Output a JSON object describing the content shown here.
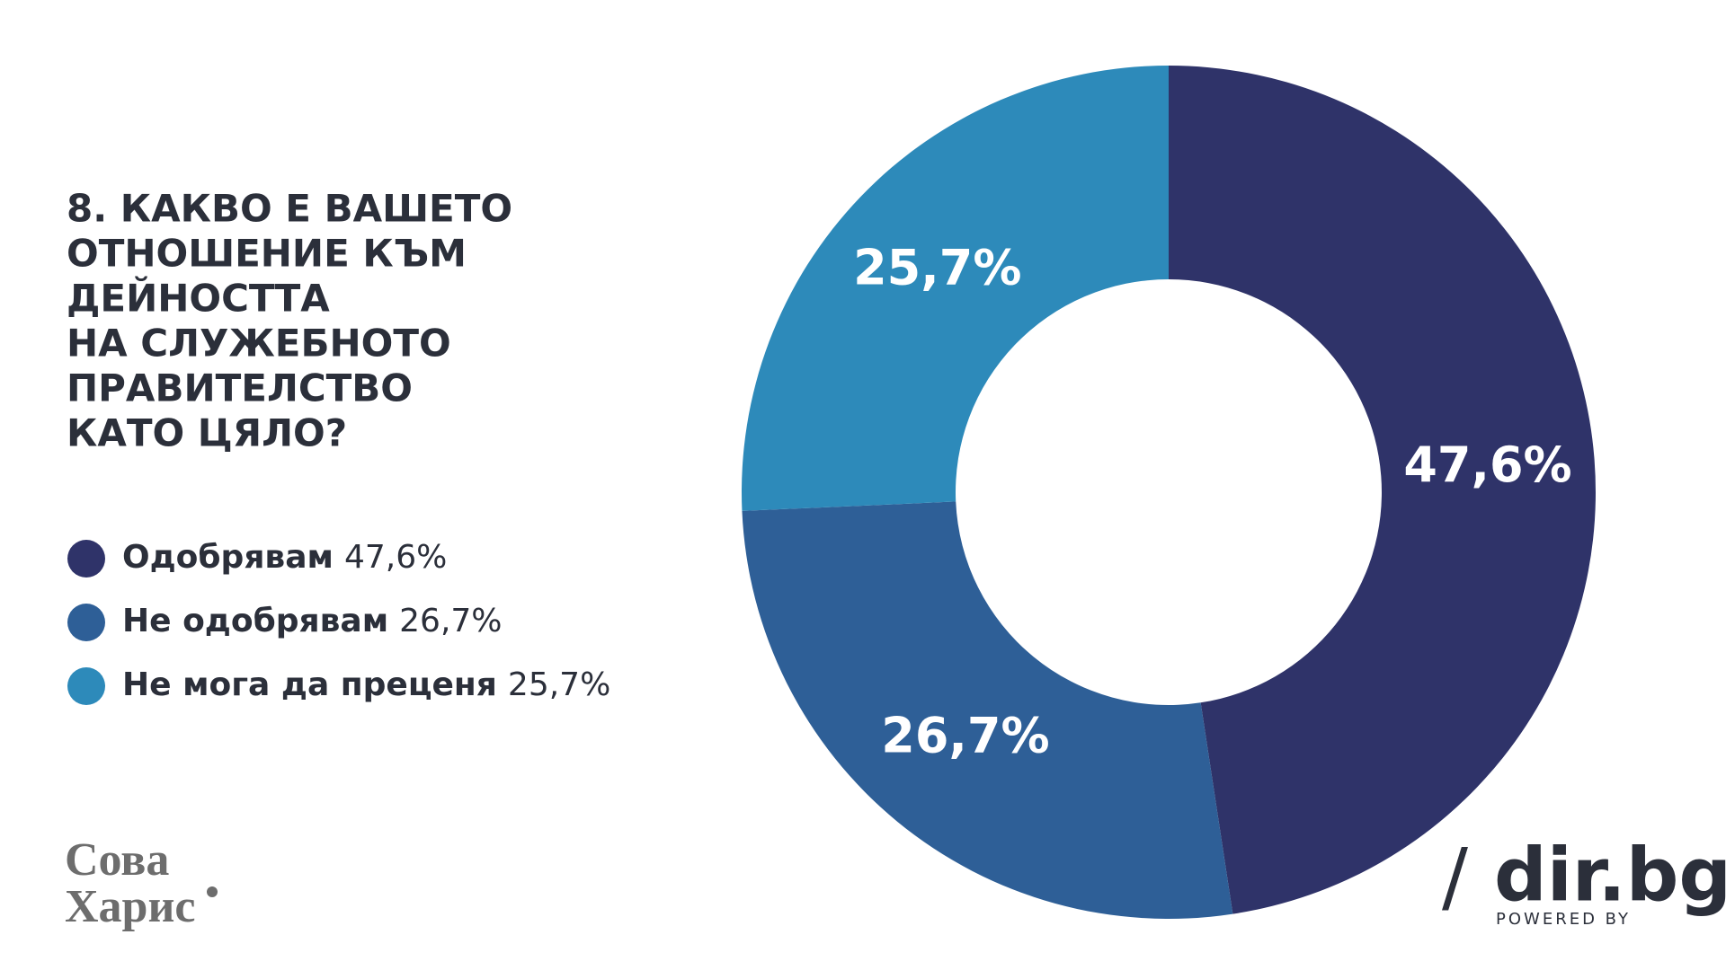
{
  "chart_data": {
    "type": "donut",
    "title_lines": [
      "8. КАКВО Е ВАШЕТО",
      "ОТНОШЕНИЕ КЪМ",
      "ДЕЙНОСТТА",
      "НА СЛУЖЕБНОТО",
      "ПРАВИТЕЛСТВО",
      "КАТО ЦЯЛО?"
    ],
    "categories": [
      "Одобрявам",
      "Не одобрявам",
      "Не мога да преценя"
    ],
    "values": [
      47.6,
      26.7,
      25.7
    ],
    "value_labels": [
      "47,6%",
      "26,7%",
      "25,7%"
    ],
    "colors": [
      "#2f3369",
      "#2e5f97",
      "#2d8aba"
    ]
  },
  "logos": {
    "left_line1": "Сова",
    "left_line2": "Харис",
    "right_slash": "/",
    "right_name": "dir.bg",
    "right_sub": "POWERED BY"
  }
}
